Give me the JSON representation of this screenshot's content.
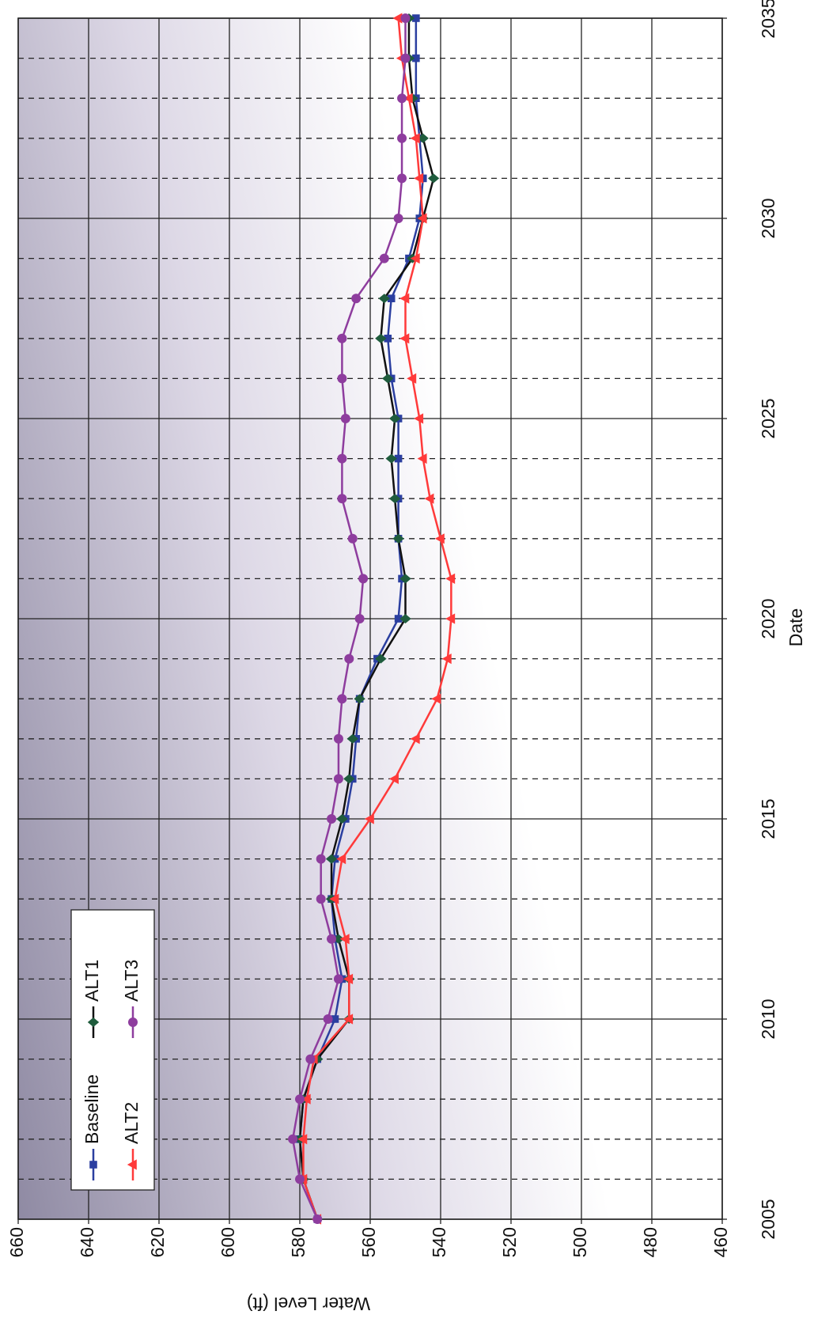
{
  "chart_data": {
    "type": "line",
    "x_label": "Date",
    "y_label": "Water Level (ft)",
    "x": [
      2005,
      2006,
      2007,
      2008,
      2009,
      2010,
      2011,
      2012,
      2013,
      2014,
      2015,
      2016,
      2017,
      2018,
      2019,
      2020,
      2021,
      2022,
      2023,
      2024,
      2025,
      2026,
      2027,
      2028,
      2029,
      2030,
      2031,
      2032,
      2033,
      2034,
      2035
    ],
    "series": [
      {
        "name": "Baseline",
        "color": "#2b3fa0",
        "line_color": "#2b3fa0",
        "marker": "square",
        "values": [
          575,
          579,
          580,
          579,
          575,
          570,
          568,
          570,
          571,
          570,
          567,
          565,
          564,
          563,
          558,
          552,
          551,
          552,
          552,
          552,
          552,
          554,
          555,
          554,
          549,
          546,
          545,
          546,
          547,
          547,
          547
        ]
      },
      {
        "name": "ALT1",
        "color": "#1f5c3d",
        "line_color": "#111111",
        "marker": "diamond",
        "values": [
          575,
          579,
          580,
          579,
          575,
          566,
          566,
          569,
          571,
          571,
          568,
          566,
          565,
          563,
          557,
          550,
          550,
          552,
          553,
          554,
          553,
          555,
          557,
          556,
          548,
          545,
          542,
          545,
          548,
          549,
          549
        ]
      },
      {
        "name": "ALT2",
        "color": "#ff3a3a",
        "line_color": "#ff3a3a",
        "marker": "triangle",
        "values": [
          575,
          579,
          579,
          578,
          576,
          566,
          566,
          567,
          570,
          568,
          560,
          553,
          547,
          541,
          538,
          537,
          537,
          540,
          543,
          545,
          546,
          548,
          550,
          550,
          547,
          545,
          546,
          547,
          549,
          551,
          552
        ]
      },
      {
        "name": "ALT3",
        "color": "#8e3d9e",
        "line_color": "#8e3d9e",
        "marker": "circle",
        "values": [
          575,
          580,
          582,
          580,
          577,
          572,
          569,
          571,
          574,
          574,
          571,
          569,
          569,
          568,
          566,
          563,
          562,
          565,
          568,
          568,
          567,
          568,
          568,
          564,
          556,
          552,
          551,
          551,
          551,
          550,
          550
        ]
      }
    ],
    "xlim": [
      2005,
      2035
    ],
    "xticks": [
      2005,
      2010,
      2015,
      2020,
      2025,
      2030,
      2035
    ],
    "ylim": [
      460,
      660
    ],
    "yticks": [
      460,
      480,
      500,
      520,
      540,
      560,
      580,
      600,
      620,
      640,
      660
    ],
    "grid": true,
    "legend": "upper left"
  }
}
